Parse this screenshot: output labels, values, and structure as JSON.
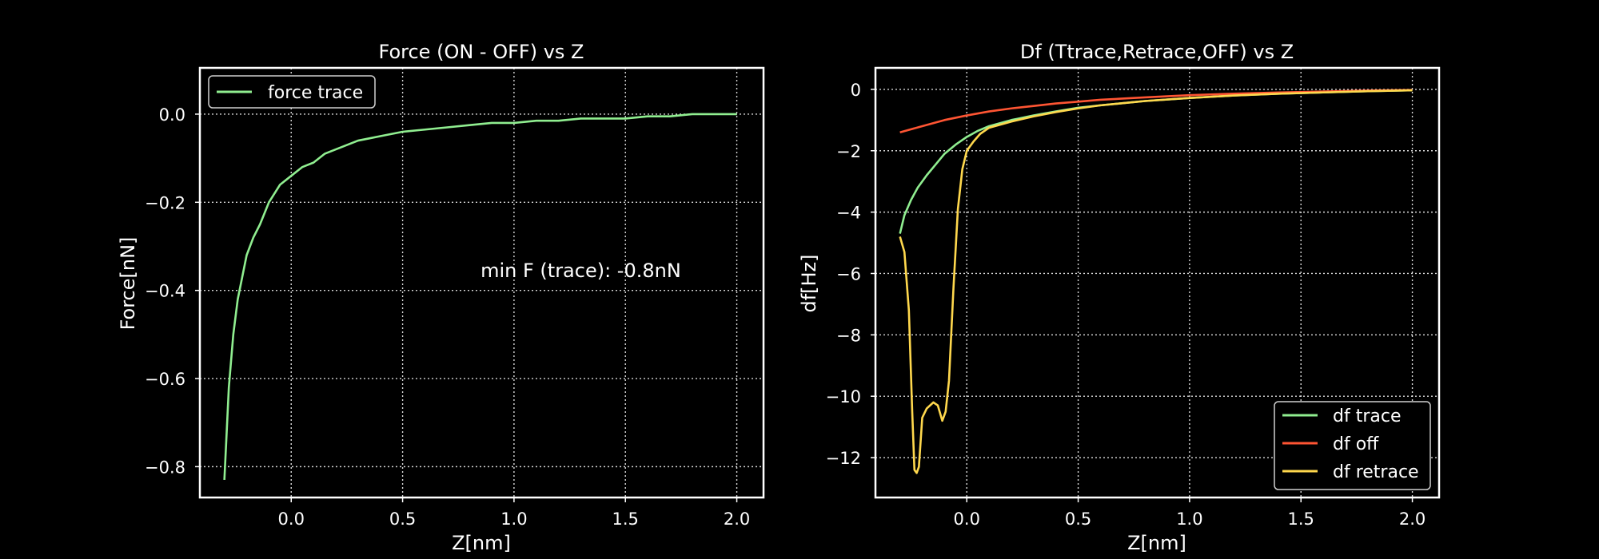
{
  "chart_data": [
    {
      "type": "line",
      "title": "Force (ON - OFF) vs Z",
      "xlabel": "Z[nm]",
      "ylabel": "Force[nN]",
      "xlim": [
        -0.41,
        2.12
      ],
      "ylim": [
        -0.87,
        0.105
      ],
      "xticks": [
        0.0,
        0.5,
        1.0,
        1.5,
        2.0
      ],
      "xtick_labels": [
        "0.0",
        "0.5",
        "1.0",
        "1.5",
        "2.0"
      ],
      "yticks": [
        0.0,
        -0.2,
        -0.4,
        -0.6,
        -0.8
      ],
      "ytick_labels": [
        "0.0",
        "−0.2",
        "−0.4",
        "−0.6",
        "−0.8"
      ],
      "grid": true,
      "legend_position": "top-left",
      "annotation": {
        "text": "min F (trace): -0.8nN",
        "x": 0.85,
        "y": -0.37
      },
      "series": [
        {
          "name": "force trace",
          "color": "#90ee90",
          "x": [
            -0.3,
            -0.28,
            -0.26,
            -0.24,
            -0.22,
            -0.2,
            -0.17,
            -0.14,
            -0.1,
            -0.05,
            0.0,
            0.05,
            0.1,
            0.15,
            0.2,
            0.25,
            0.3,
            0.35,
            0.4,
            0.5,
            0.6,
            0.7,
            0.8,
            0.9,
            1.0,
            1.1,
            1.2,
            1.3,
            1.4,
            1.5,
            1.6,
            1.7,
            1.8,
            1.9,
            2.0
          ],
          "y": [
            -0.83,
            -0.62,
            -0.5,
            -0.42,
            -0.37,
            -0.32,
            -0.28,
            -0.25,
            -0.2,
            -0.16,
            -0.14,
            -0.12,
            -0.11,
            -0.09,
            -0.08,
            -0.07,
            -0.06,
            -0.055,
            -0.05,
            -0.04,
            -0.035,
            -0.03,
            -0.025,
            -0.02,
            -0.02,
            -0.015,
            -0.015,
            -0.01,
            -0.01,
            -0.01,
            -0.005,
            -0.005,
            0.0,
            0.0,
            0.0
          ]
        }
      ]
    },
    {
      "type": "line",
      "title": "Df (Ttrace,Retrace,OFF) vs Z",
      "xlabel": "Z[nm]",
      "ylabel": "df[Hz]",
      "xlim": [
        -0.41,
        2.12
      ],
      "ylim": [
        -13.3,
        0.7
      ],
      "xticks": [
        0.0,
        0.5,
        1.0,
        1.5,
        2.0
      ],
      "xtick_labels": [
        "0.0",
        "0.5",
        "1.0",
        "1.5",
        "2.0"
      ],
      "yticks": [
        0,
        -2,
        -4,
        -6,
        -8,
        -10,
        -12
      ],
      "ytick_labels": [
        "0",
        "−2",
        "−4",
        "−6",
        "−8",
        "−10",
        "−12"
      ],
      "grid": true,
      "legend_position": "bottom-right",
      "series": [
        {
          "name": "df trace",
          "color": "#90ee90",
          "x": [
            -0.3,
            -0.28,
            -0.25,
            -0.22,
            -0.18,
            -0.14,
            -0.1,
            -0.05,
            0.0,
            0.05,
            0.1,
            0.2,
            0.3,
            0.4,
            0.5,
            0.6,
            0.7,
            0.8,
            1.0,
            1.2,
            1.4,
            1.6,
            1.8,
            2.0
          ],
          "y": [
            -4.7,
            -4.1,
            -3.6,
            -3.2,
            -2.8,
            -2.45,
            -2.1,
            -1.8,
            -1.55,
            -1.35,
            -1.2,
            -1.0,
            -0.85,
            -0.72,
            -0.6,
            -0.52,
            -0.45,
            -0.38,
            -0.28,
            -0.2,
            -0.14,
            -0.1,
            -0.06,
            -0.03
          ]
        },
        {
          "name": "df off",
          "color": "#ff5533",
          "x": [
            -0.3,
            -0.2,
            -0.1,
            0.0,
            0.1,
            0.2,
            0.3,
            0.4,
            0.5,
            0.6,
            0.8,
            1.0,
            1.2,
            1.4,
            1.6,
            1.8,
            2.0
          ],
          "y": [
            -1.4,
            -1.2,
            -1.0,
            -0.85,
            -0.72,
            -0.62,
            -0.54,
            -0.46,
            -0.4,
            -0.34,
            -0.26,
            -0.19,
            -0.14,
            -0.1,
            -0.07,
            -0.04,
            -0.02
          ]
        },
        {
          "name": "df retrace",
          "color": "#ffd84d",
          "x": [
            -0.3,
            -0.28,
            -0.26,
            -0.245,
            -0.235,
            -0.225,
            -0.215,
            -0.2,
            -0.18,
            -0.15,
            -0.13,
            -0.11,
            -0.095,
            -0.08,
            -0.06,
            -0.04,
            -0.02,
            0.0,
            0.03,
            0.06,
            0.1,
            0.2,
            0.3,
            0.4,
            0.5,
            0.6,
            0.8,
            1.0,
            1.2,
            1.4,
            1.6,
            1.8,
            2.0
          ],
          "y": [
            -4.8,
            -5.3,
            -7.2,
            -10.5,
            -12.4,
            -12.5,
            -12.3,
            -10.7,
            -10.4,
            -10.2,
            -10.3,
            -10.8,
            -10.5,
            -9.5,
            -6.5,
            -3.9,
            -2.6,
            -2.0,
            -1.7,
            -1.45,
            -1.25,
            -1.05,
            -0.88,
            -0.74,
            -0.62,
            -0.52,
            -0.38,
            -0.28,
            -0.2,
            -0.14,
            -0.1,
            -0.06,
            -0.03
          ]
        }
      ]
    }
  ]
}
